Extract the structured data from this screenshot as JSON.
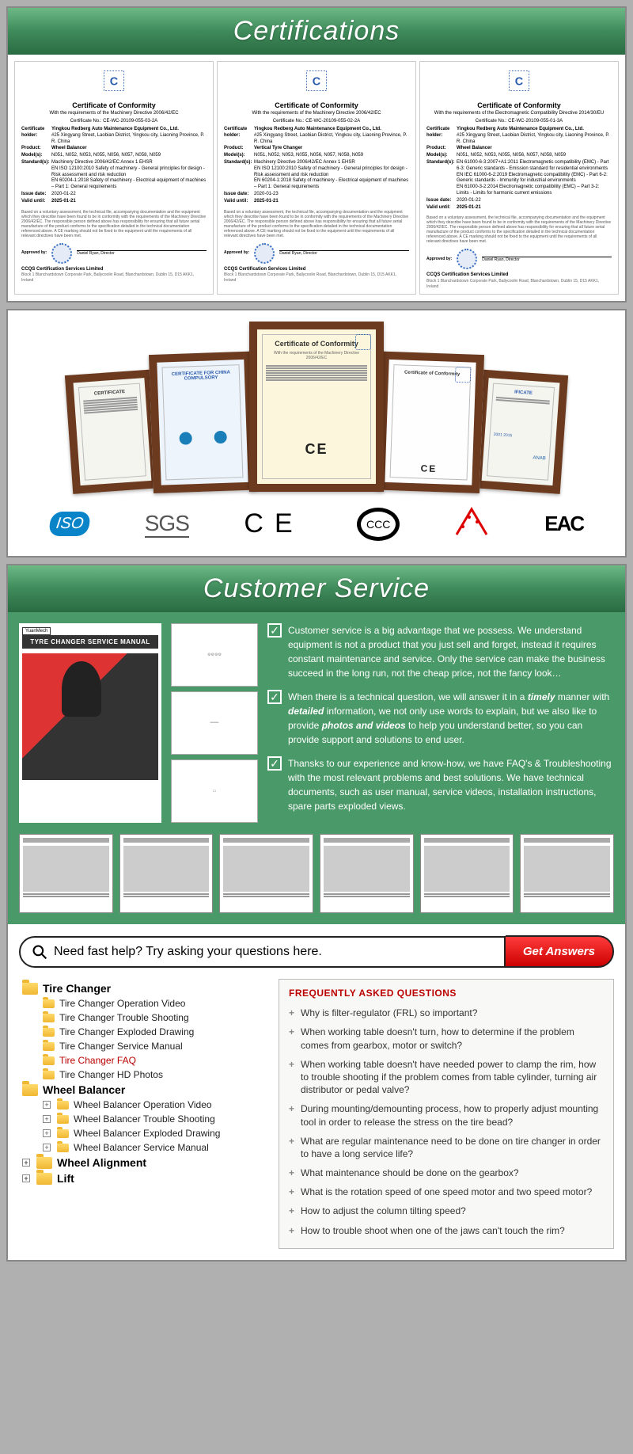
{
  "sections": {
    "certifications_title": "Certifications",
    "customer_service_title": "Customer Service"
  },
  "certificates": [
    {
      "title": "Certificate of Conformity",
      "subtitle": "With the requirements of the Machinery Directive 2006/42/EC",
      "certno": "Certificate No.: CE-WC-20109-055-03-2A",
      "holder": "Yingkou Redberg Auto Maintenance Equipment Co., Ltd.",
      "holder_addr": "#25 Xingyang Street, Laobian District, Yingkou city, Liaoning Province, P. R. China",
      "product": "Wheel Balancer",
      "models": "N051, N052, N053, N055, N056, N057, N058, N059",
      "standards": "Machinery Directive 2006/42/EC Annex 1 EHSR\nEN ISO 12100:2010 Safety of machinery - General principles for design - Risk assessment and risk reduction\nEN 60204-1:2018 Safety of machinery - Electrical equipment of machines – Part 1: General requirements",
      "issue": "2020-01-22",
      "valid": "2025-01-21",
      "company": "CCQS Certification Services Limited"
    },
    {
      "title": "Certificate of Conformity",
      "subtitle": "With the requirements of the Machinery Directive 2006/42/EC",
      "certno": "Certificate No.: CE-WC-20109-055-02-2A",
      "holder": "Yingkou Redberg Auto Maintenance Equipment Co., Ltd.",
      "holder_addr": "#25 Xingyang Street, Laobian District, Yingkou city, Liaoning Province, P. R. China",
      "product": "Vertical Tyre Changer",
      "models": "N051, N052, N053, N055, N056, N057, N058, N059",
      "standards": "Machinery Directive 2006/42/EC Annex 1 EHSR\nEN ISO 12100:2010 Safety of machinery - General principles for design - Risk assessment and risk reduction\nEN 60204-1:2018 Safety of machinery - Electrical equipment of machines – Part 1: General requirements",
      "issue": "2020-01-23",
      "valid": "2025-01-21",
      "company": "CCQS Certification Services Limited"
    },
    {
      "title": "Certificate of Conformity",
      "subtitle": "With the requirements of the Electromagnetic Compatibility Directive 2014/30/EU",
      "certno": "Certificate No.: CE-WC-20109-055-01-3A",
      "holder": "Yingkou Redberg Auto Maintenance Equipment Co., Ltd.",
      "holder_addr": "#25 Xingyang Street, Laobian District, Yingkou city, Liaoning Province, P. R. China",
      "product": "Wheel Balancer",
      "models": "N051, N052, N053, N055, N056, N057, N058, N059",
      "standards": "EN 61000-6-3:2007+A1:2011 Electromagnetic compatibility (EMC) - Part 6-3: Generic standards - Emission standard for residential environments\nEN IEC 61000-6-2:2019 Electromagnetic compatibility (EMC) - Part 6-2: Generic standards - Immunity for industrial environments\nEN 61000-3-2:2014 Electromagnetic compatibility (EMC) – Part 3-2: Limits - Limits for harmonic current emissions",
      "issue": "2020-01-22",
      "valid": "2025-01-21",
      "company": "CCQS Certification Services Limited"
    }
  ],
  "cert_labels": {
    "holder": "Certificate holder:",
    "product": "Product:",
    "models": "Model(s):",
    "standards": "Standard(s):",
    "issue": "Issue date:",
    "valid": "Valid until:"
  },
  "cert_foot_text": "Based on a voluntary assessment, the technical file, accompanying documentation and the equipment which they describe have been found to be in conformity with the requirements of the Machinery Directive 2006/42/EC. The responsible person defined above has responsibility for ensuring that all future serial manufacture of the product conforms to the specification detailed in the technical documentation referenced above. A CE marking should not be fixed to the equipment until the requirements of all relevant directives have been met.",
  "logo_row": {
    "iso": "ISO",
    "sgs": "SGS",
    "ce": "CE",
    "ccc": "CCC",
    "eac": "EAC"
  },
  "frames": {
    "f3_title": "Certificate of Conformity",
    "f3_sub": "With the requirements of the Machinery Directive 2006/42/EC"
  },
  "manual_title": "TYRE CHANGER SERVICE MANUAL",
  "cs_points": [
    "Customer service is a big advantage that we possess. We understand equipment is not a product that you just sell and forget, instead it requires constant maintenance and service. Only the service can make the business succeed in the long run, not the cheap price, not the fancy look…",
    "When there is a technical question, we will answer it in a <i>timely</i> manner with <i>detailed</i> information, we not only use words to explain, but we also like to provide <i>photos and videos</i> to help you understand better, so you can provide support and solutions to end user.",
    "Thansks to our experience and know-how, we have FAQ's & Troubleshooting with the most relevant problems and best solutions. We have technical documents, such as user manual, service videos, installation instructions, spare parts exploded views."
  ],
  "askbar": {
    "placeholder": "Need fast help? Try asking your questions here.",
    "button": "Get Answers"
  },
  "tree": {
    "tire_changer": {
      "label": "Tire Changer",
      "children": [
        "Tire Changer Operation Video",
        "Tire Changer Trouble Shooting",
        "Tire Changer Exploded Drawing",
        "Tire Changer Service Manual",
        "Tire Changer FAQ",
        "Tire Changer HD Photos"
      ],
      "highlight_index": 4
    },
    "wheel_balancer": {
      "label": "Wheel Balancer",
      "children": [
        "Wheel Balancer Operation Video",
        "Wheel Balancer Trouble Shooting",
        "Wheel Balancer Exploded Drawing",
        "Wheel Balancer Service Manual"
      ]
    },
    "wheel_alignment": {
      "label": "Wheel Alignment"
    },
    "lift": {
      "label": "Lift"
    }
  },
  "faq": {
    "title": "FREQUENTLY ASKED QUESTIONS",
    "items": [
      "Why is filter-regulator (FRL) so important?",
      "When working table doesn't turn, how to determine if the problem comes from gearbox, motor or switch?",
      "When working table doesn't have needed power to clamp the rim, how to trouble shooting if the problem comes from table cylinder, turning air distributor or pedal valve?",
      "During mounting/demounting process, how to properly adjust mounting tool in order to release the stress on the tire bead?",
      "What are regular maintenance need to be done on tire changer in order to have a long service life?",
      "What maintenance should be done on the gearbox?",
      "What is the rotation speed of one speed motor and two speed motor?",
      "How to adjust the column tilting speed?",
      "How to trouble shoot when one of the jaws can't touch the rim?"
    ]
  },
  "colors": {
    "green_panel": "#4a9968",
    "heading_grad_top": "#6db986",
    "heading_grad_bot": "#2a6b42",
    "red_btn": "#c00",
    "folder": "#f0b732",
    "faq_title": "#b00"
  }
}
